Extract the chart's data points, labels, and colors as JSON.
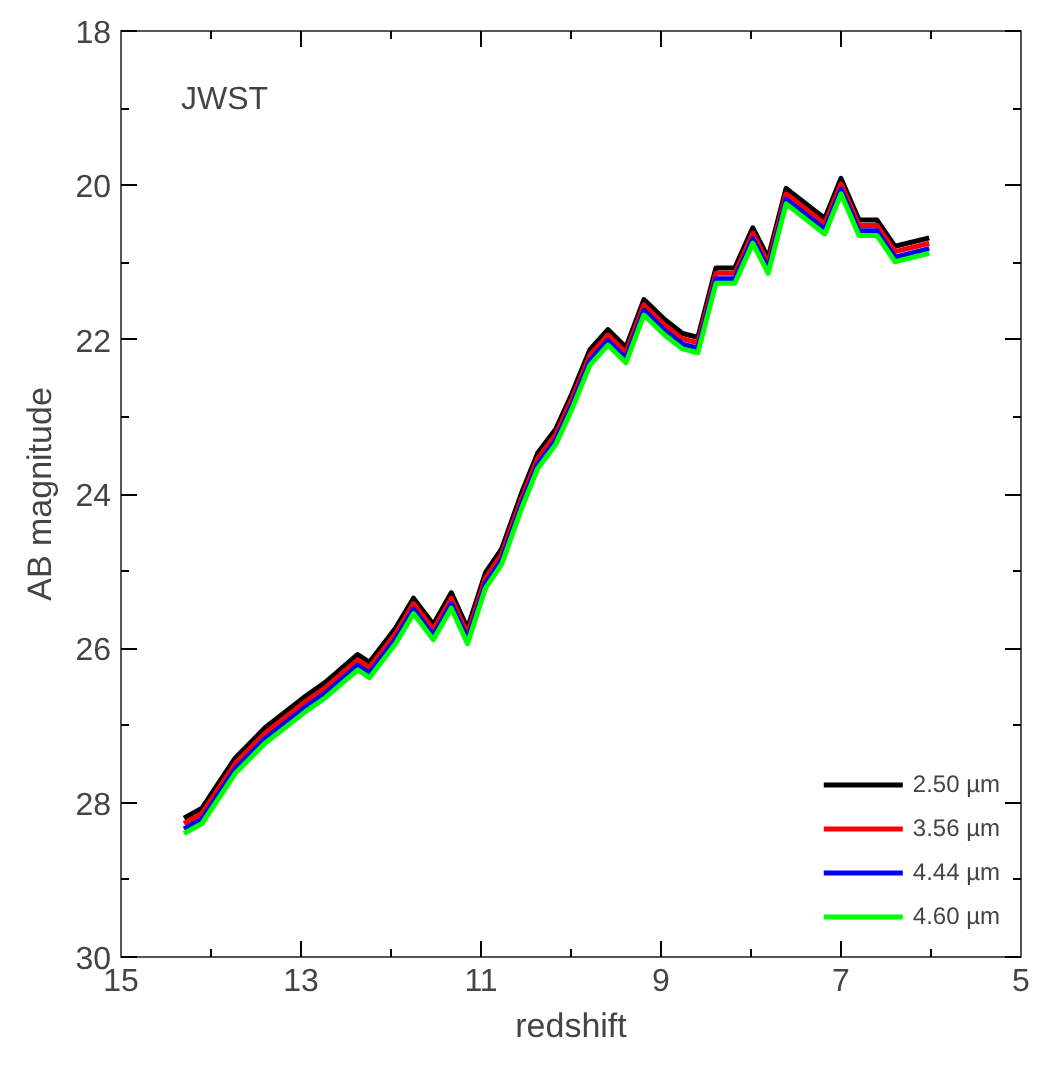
{
  "chart_data": {
    "type": "line",
    "xlabel": "redshift",
    "ylabel": "AB magnitude",
    "annotations": [
      "JWST"
    ],
    "x": [
      14.3,
      14.1,
      13.73,
      13.4,
      12.95,
      12.73,
      12.37,
      12.24,
      11.95,
      11.75,
      11.53,
      11.33,
      11.15,
      10.95,
      10.77,
      10.55,
      10.37,
      10.17,
      9.99,
      9.79,
      9.59,
      9.39,
      9.19,
      8.96,
      8.76,
      8.59,
      8.39,
      8.18,
      7.98,
      7.81,
      7.61,
      7.18,
      7.0,
      6.8,
      6.6,
      6.4,
      6.02
    ],
    "xlim": [
      15,
      5
    ],
    "ylim": [
      30,
      18
    ],
    "xticks": [
      15,
      13,
      11,
      9,
      7,
      5
    ],
    "yticks": [
      30,
      28,
      26,
      24,
      22,
      20,
      18
    ],
    "grid": false,
    "legend": "bottom right",
    "line_style": "solid",
    "series": [
      {
        "name": "2.50 µm",
        "color": "#000000",
        "values": [
          28.2,
          28.07,
          27.42,
          27.03,
          26.62,
          26.44,
          26.08,
          26.18,
          25.74,
          25.35,
          25.69,
          25.28,
          25.74,
          25.02,
          24.71,
          23.99,
          23.47,
          23.16,
          22.7,
          22.13,
          21.87,
          22.1,
          21.48,
          21.74,
          21.92,
          21.97,
          21.07,
          21.07,
          20.55,
          20.94,
          20.04,
          20.43,
          19.91,
          20.45,
          20.45,
          20.79,
          20.68
        ]
      },
      {
        "name": "3.56 µm",
        "color": "#ff0000",
        "values": [
          28.27,
          28.14,
          27.49,
          27.1,
          26.69,
          26.51,
          26.15,
          26.25,
          25.81,
          25.42,
          25.76,
          25.35,
          25.81,
          25.09,
          24.78,
          24.06,
          23.54,
          23.23,
          22.77,
          22.2,
          21.94,
          22.17,
          21.55,
          21.81,
          21.99,
          22.04,
          21.14,
          21.14,
          20.62,
          21.01,
          20.11,
          20.5,
          19.98,
          20.52,
          20.52,
          20.86,
          20.75
        ]
      },
      {
        "name": "4.44 µm",
        "color": "#0000ff",
        "values": [
          28.34,
          28.21,
          27.56,
          27.17,
          26.76,
          26.58,
          26.22,
          26.32,
          25.88,
          25.49,
          25.83,
          25.42,
          25.88,
          25.16,
          24.85,
          24.13,
          23.61,
          23.3,
          22.84,
          22.27,
          22.01,
          22.24,
          21.62,
          21.88,
          22.06,
          22.11,
          21.21,
          21.21,
          20.69,
          21.08,
          20.18,
          20.57,
          20.05,
          20.59,
          20.59,
          20.93,
          20.82
        ]
      },
      {
        "name": "4.60 µm",
        "color": "#00ff00",
        "values": [
          28.4,
          28.27,
          27.62,
          27.23,
          26.82,
          26.64,
          26.28,
          26.38,
          25.94,
          25.55,
          25.89,
          25.48,
          25.94,
          25.22,
          24.91,
          24.19,
          23.67,
          23.36,
          22.9,
          22.33,
          22.07,
          22.3,
          21.68,
          21.94,
          22.12,
          22.17,
          21.27,
          21.27,
          20.75,
          21.14,
          20.24,
          20.63,
          20.11,
          20.65,
          20.65,
          20.99,
          20.88
        ]
      }
    ]
  }
}
